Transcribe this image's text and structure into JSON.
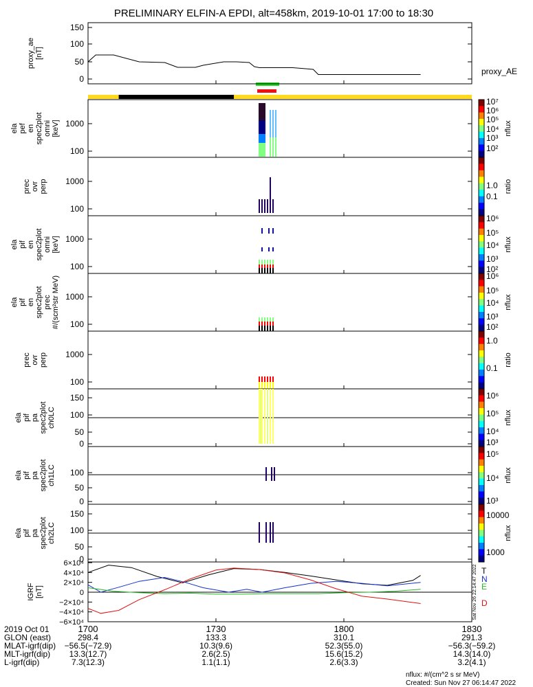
{
  "title": "PRELIMINARY ELFIN-A EPDI, alt=458km, 2019-10-01 17:00 to 18:30",
  "colors": {
    "axis": "#000000",
    "orbit_day": "#ffd820",
    "orbit_night": "#000000",
    "flag_green": "#22dd22",
    "flag_red": "#ee1111",
    "grf_t": "#000000",
    "grf_n": "#1030d0",
    "grf_e": "#22bb22",
    "grf_d": "#dd1111"
  },
  "chart_data": [
    {
      "type": "line",
      "panel": "proxy_ae",
      "ylabel": [
        "proxy_ae",
        "[nT]"
      ],
      "yticks": [
        "150",
        "100",
        "50",
        "0"
      ],
      "ylim": [
        0,
        160
      ],
      "legend": "proxy_AE",
      "x": [
        17.0,
        17.03,
        17.1,
        17.2,
        17.3,
        17.35,
        17.42,
        17.45,
        17.53,
        17.58,
        17.63,
        17.65,
        17.67,
        17.8,
        17.85,
        17.88,
        17.9,
        18.0,
        18.3
      ],
      "values": [
        50,
        70,
        70,
        50,
        48,
        34,
        34,
        40,
        50,
        50,
        48,
        36,
        33,
        33,
        30,
        28,
        13,
        13,
        13
      ]
    },
    {
      "type": "heatmap",
      "panel": "ela_pef_en_omni",
      "ylabel": [
        "ela",
        "pef",
        "en",
        "spec2plot",
        "omni",
        "[keV]"
      ],
      "yticks": [
        "1000",
        "100"
      ],
      "colorbar": {
        "labels": [
          "10⁷",
          "10⁶",
          "10⁵",
          "10⁴",
          "10³",
          "10²"
        ],
        "title": "nflux"
      }
    },
    {
      "type": "heatmap",
      "panel": "prec_ovr_perp_e",
      "ylabel": [
        "prec",
        "ovr",
        "perp"
      ],
      "yticks": [
        "1000",
        "100"
      ],
      "colorbar": {
        "labels": [
          "1.0",
          "0.1"
        ],
        "title": "ratio"
      }
    },
    {
      "type": "heatmap",
      "panel": "ela_pif_en_omni",
      "ylabel": [
        "ela",
        "pif",
        "en",
        "spec2plot",
        "omni",
        "[keV]"
      ],
      "yticks": [
        "1000",
        "100"
      ],
      "colorbar": {
        "labels": [
          "10⁶",
          "10⁵",
          "10⁴",
          "10³",
          "10²"
        ],
        "title": "nflux"
      }
    },
    {
      "type": "heatmap",
      "panel": "ela_pif_en_prec",
      "ylabel": [
        "ela",
        "pif",
        "en",
        "spec2plot",
        "prec",
        "#/(scm²str MeV)"
      ],
      "yticks": [
        "1000",
        "100"
      ],
      "colorbar": {
        "labels": [
          "10⁶",
          "10⁵",
          "10⁴",
          "10³",
          "10²"
        ],
        "title": "nflux"
      }
    },
    {
      "type": "heatmap",
      "panel": "prec_ovr_perp_i",
      "ylabel": [
        "prec",
        "ovr",
        "perp"
      ],
      "yticks": [
        "1000",
        "100"
      ],
      "colorbar": {
        "labels": [
          "1.0",
          "0.1"
        ],
        "title": "ratio"
      }
    },
    {
      "type": "heatmap",
      "panel": "ela_pif_pa_ch0LC",
      "ylabel": [
        "ela",
        "pif",
        "pa",
        "spec2plot",
        "ch0LC"
      ],
      "yticks": [
        "150",
        "100",
        "50",
        "0"
      ],
      "colorbar": {
        "labels": [
          "10⁶",
          "10⁵",
          "10⁴",
          "10³"
        ],
        "title": "nflux"
      }
    },
    {
      "type": "heatmap",
      "panel": "ela_pif_pa_ch1LC",
      "ylabel": [
        "ela",
        "pif",
        "pa",
        "spec2plot",
        "ch1LC"
      ],
      "yticks": [
        "100",
        "50",
        "0"
      ],
      "colorbar": {
        "labels": [
          "10⁵",
          "10⁴",
          "10³"
        ],
        "title": "nflux"
      }
    },
    {
      "type": "heatmap",
      "panel": "ela_pif_pa_ch2LC",
      "ylabel": [
        "ela",
        "pif",
        "pa",
        "spec2plot",
        "ch2LC"
      ],
      "yticks": [
        "150",
        "100",
        "50",
        "0"
      ],
      "colorbar": {
        "labels": [
          "10000",
          "1000"
        ],
        "title": "nflux"
      }
    },
    {
      "type": "line",
      "panel": "igrf",
      "ylabel": [
        "IGRF",
        "[nT]"
      ],
      "yticks": [
        "6×10⁴",
        "4×10⁴",
        "2×10⁴",
        "0",
        "−2×10⁴",
        "−4×10⁴",
        "−6×10⁴"
      ],
      "ylim": [
        -60000,
        60000
      ],
      "series": [
        {
          "name": "T",
          "x": [
            17.0,
            17.08,
            17.17,
            17.27,
            17.37,
            17.47,
            17.57,
            17.67,
            17.77,
            17.87,
            17.97,
            18.07,
            18.17,
            18.27,
            18.3
          ],
          "values": [
            40000,
            55000,
            50000,
            32000,
            19000,
            35000,
            48000,
            46000,
            40000,
            33000,
            25000,
            17000,
            14000,
            24000,
            34000
          ]
        },
        {
          "name": "N",
          "x": [
            17.0,
            17.05,
            17.12,
            17.2,
            17.3,
            17.38,
            17.45,
            17.55,
            17.62,
            17.68,
            17.77,
            17.87,
            17.97,
            18.07,
            18.17,
            18.3
          ],
          "values": [
            15000,
            0,
            10000,
            22000,
            30000,
            20000,
            9000,
            0,
            6000,
            0,
            9000,
            18000,
            22000,
            18000,
            13000,
            20000
          ]
        },
        {
          "name": "E",
          "x": [
            17.0,
            17.1,
            17.2,
            17.3,
            17.4,
            17.5,
            17.6,
            17.7,
            17.8,
            17.9,
            18.0,
            18.1,
            18.2,
            18.3
          ],
          "values": [
            9000,
            2000,
            -1000,
            -3000,
            -2000,
            -4000,
            -4000,
            -3000,
            -3000,
            -3000,
            -1000,
            0,
            2000,
            6000
          ]
        },
        {
          "name": "D",
          "x": [
            17.0,
            17.05,
            17.12,
            17.2,
            17.3,
            17.4,
            17.5,
            17.57,
            17.67,
            17.77,
            17.87,
            17.97,
            18.07,
            18.17,
            18.3
          ],
          "values": [
            -33000,
            -43000,
            -37000,
            -15000,
            5000,
            27000,
            45000,
            49000,
            46000,
            39000,
            25000,
            7000,
            -8000,
            -14000,
            -23000
          ]
        }
      ]
    }
  ],
  "orbit_bar": {
    "night_start": 17.12,
    "night_end": 17.57
  },
  "xaxis": {
    "tick_labels": [
      "1700",
      "1730",
      "1800",
      "1830"
    ],
    "rows": [
      {
        "label": "2019 Oct 01",
        "values": [
          "",
          "",
          "",
          ""
        ]
      },
      {
        "label": "GLON (east)",
        "values": [
          "298.4",
          "133.3",
          "310.1",
          "291.3"
        ]
      },
      {
        "label": "MLAT-igrf(dip)",
        "values": [
          "−56.5(−72.9)",
          "10.3(9.6)",
          "52.3(55.0)",
          "−56.3(−59.2)"
        ]
      },
      {
        "label": "MLT-igrf(dip)",
        "values": [
          "13.3(12.7)",
          "2.6(2.5)",
          "15.6(15.2)",
          "14.3(14.0)"
        ]
      },
      {
        "label": "L-igrf(dip)",
        "values": [
          "7.3(12.3)",
          "1.1(1.1)",
          "2.6(3.3)",
          "3.2(4.1)"
        ]
      }
    ]
  },
  "footer": {
    "units": "nflux: #/(cm^2 s sr MeV)",
    "created": "Created: Sun Nov 27 06:14:47 2022",
    "side_stamp": "Sat Nov 26 22:14:47 2022"
  }
}
